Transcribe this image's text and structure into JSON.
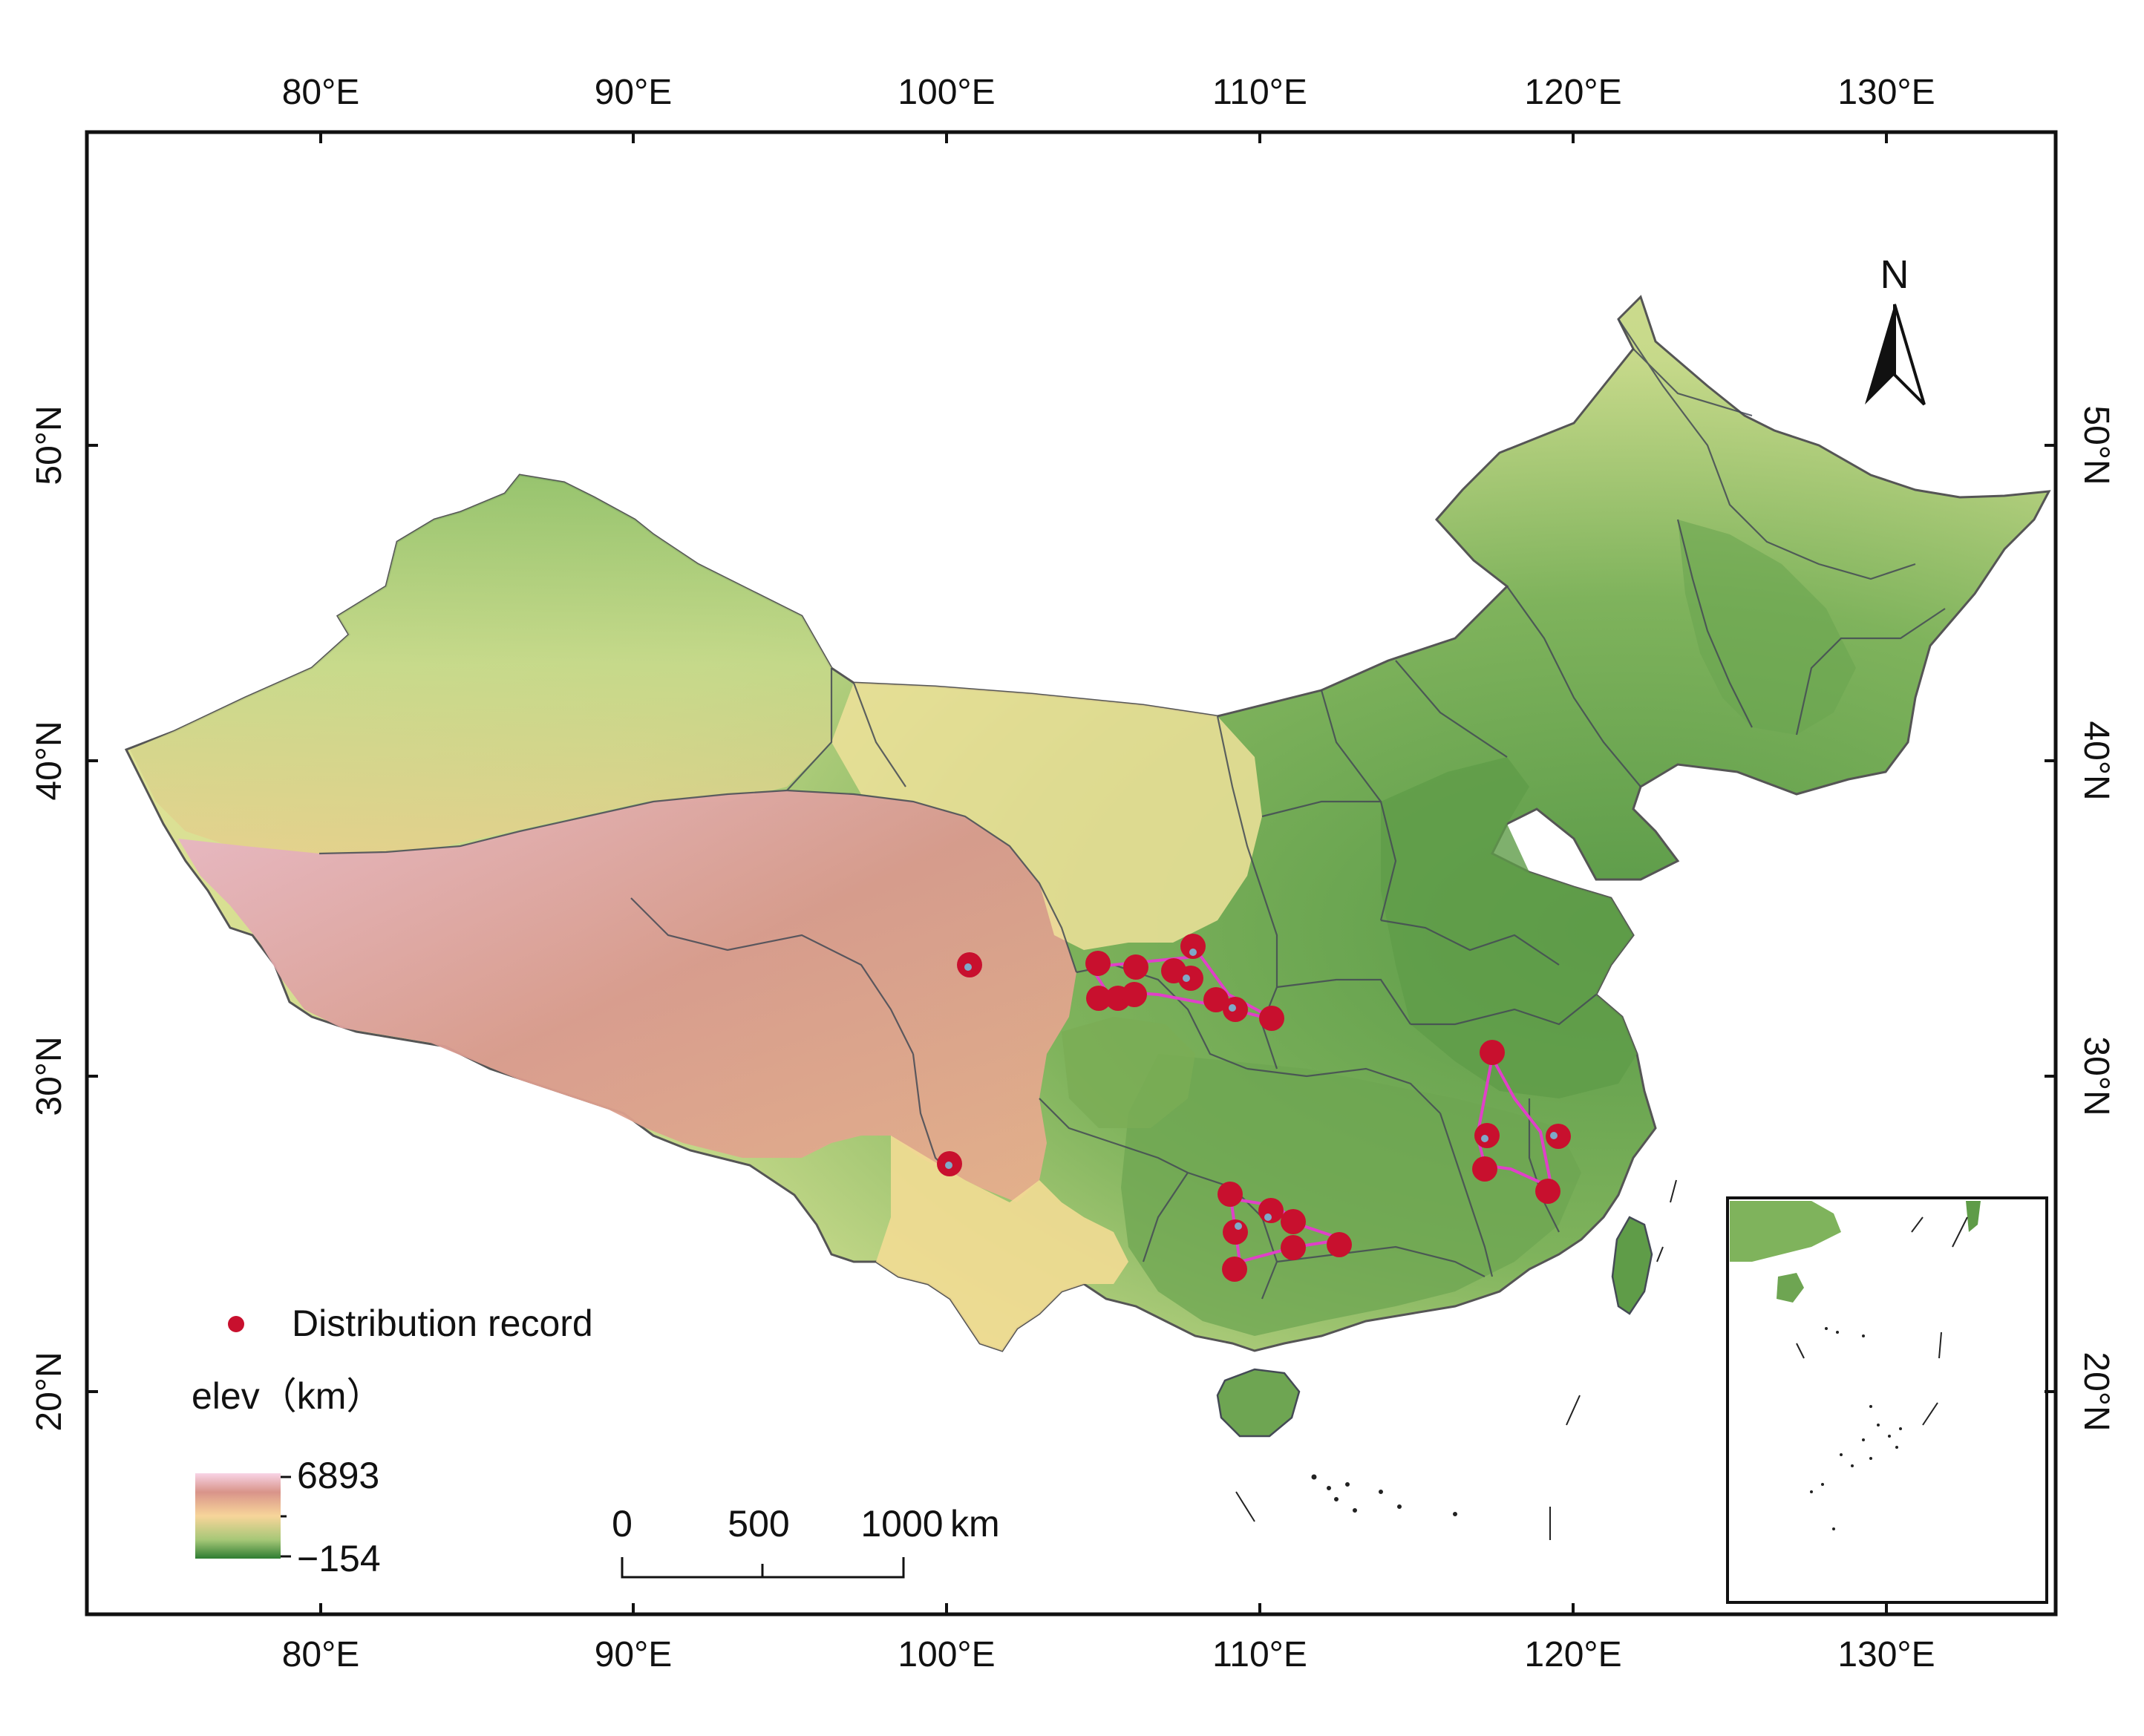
{
  "axes": {
    "x_ticks": [
      "80°E",
      "90°E",
      "100°E",
      "110°E",
      "120°E",
      "130°E"
    ],
    "y_ticks": [
      "50°N",
      "40°N",
      "30°N",
      "20°N"
    ]
  },
  "north_arrow": {
    "label": "N"
  },
  "legend": {
    "record_label": "Distribution record",
    "elev_title": "elev（km）",
    "elev_max": "6893",
    "elev_min": "−154"
  },
  "scale_bar": {
    "ticks": [
      "0",
      "500",
      "1000"
    ],
    "unit": "km"
  },
  "colors": {
    "record": "#c8102e",
    "hull": "#e040c8",
    "elev_high": "#f2b8d8",
    "elev_mid_high": "#d89a8c",
    "elev_mid": "#f5d58f",
    "elev_low_mid": "#a6c777",
    "elev_low": "#2e7d32"
  }
}
